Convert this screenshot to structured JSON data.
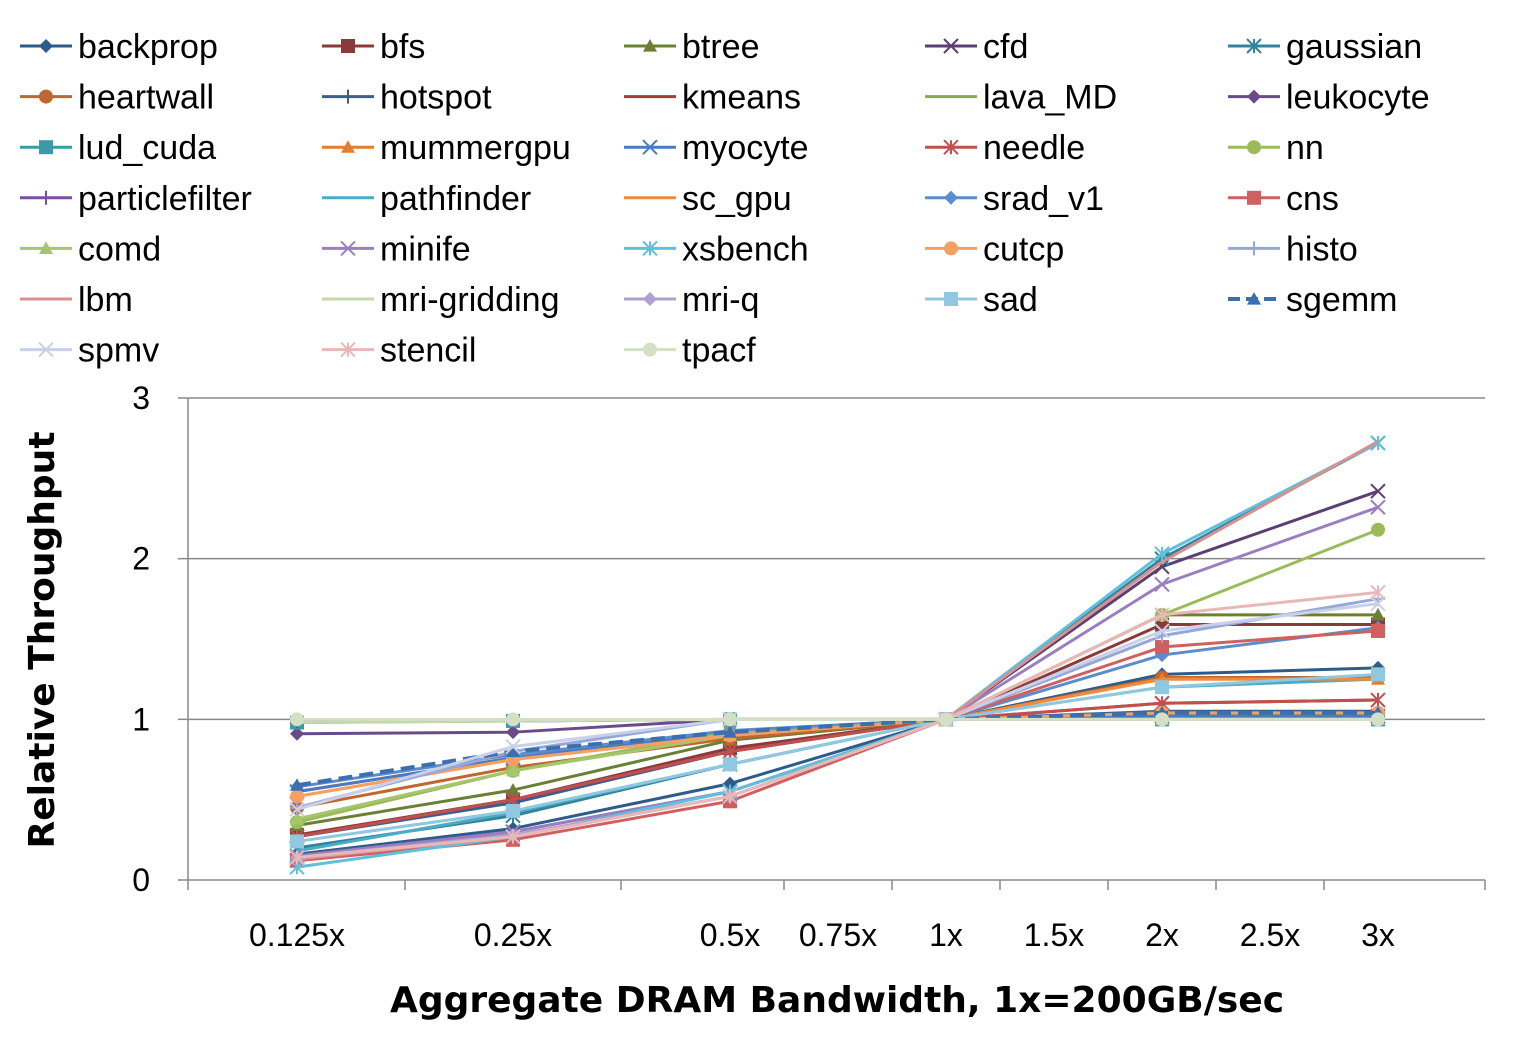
{
  "chart_data": {
    "type": "line",
    "xlabel": "Aggregate DRAM Bandwidth, 1x=200GB/sec",
    "ylabel": "Relative Throughput",
    "ylim": [
      0,
      3
    ],
    "yticks": [
      "0",
      "1",
      "2",
      "3"
    ],
    "x_tick_labels": [
      "0.125x",
      "0.25x",
      "0.5x",
      "0.75x",
      "1x",
      "1.5x",
      "2x",
      "2.5x",
      "3x"
    ],
    "categories": [
      "0.125x",
      "0.25x",
      "0.5x",
      "1x",
      "2x",
      "3x"
    ],
    "grid": true,
    "legend_position": "top",
    "series": [
      {
        "name": "backprop",
        "color": "#2E5C8A",
        "marker": "diamond",
        "values": [
          0.16,
          0.32,
          0.6,
          1.0,
          1.28,
          1.32
        ]
      },
      {
        "name": "bfs",
        "color": "#8B3A3A",
        "marker": "square",
        "values": [
          0.28,
          0.5,
          0.82,
          1.0,
          1.59,
          1.59
        ]
      },
      {
        "name": "btree",
        "color": "#6B7F35",
        "marker": "triangle",
        "values": [
          0.34,
          0.56,
          0.87,
          1.0,
          1.65,
          1.65
        ]
      },
      {
        "name": "cfd",
        "color": "#5B3F73",
        "marker": "x",
        "values": [
          0.14,
          0.3,
          0.55,
          1.0,
          1.95,
          2.42
        ]
      },
      {
        "name": "gaussian",
        "color": "#31849B",
        "marker": "star",
        "values": [
          0.2,
          0.4,
          0.72,
          1.0,
          2.0,
          2.72
        ]
      },
      {
        "name": "heartwall",
        "color": "#C0662E",
        "marker": "circle",
        "values": [
          0.45,
          0.7,
          0.88,
          1.0,
          1.26,
          1.26
        ]
      },
      {
        "name": "hotspot",
        "color": "#3A5F8F",
        "marker": "plus",
        "values": [
          0.27,
          0.48,
          0.8,
          1.0,
          1.05,
          1.05
        ]
      },
      {
        "name": "kmeans",
        "color": "#A33B3B",
        "marker": "none",
        "values": [
          0.27,
          0.5,
          0.8,
          1.0,
          1.1,
          1.12
        ]
      },
      {
        "name": "lava_MD",
        "color": "#8AAA4A",
        "marker": "none",
        "values": [
          0.36,
          0.68,
          0.92,
          1.0,
          1.03,
          1.03
        ]
      },
      {
        "name": "leukocyte",
        "color": "#6B4A8A",
        "marker": "diamond",
        "values": [
          0.91,
          0.92,
          1.0,
          1.0,
          1.0,
          1.0
        ]
      },
      {
        "name": "lud_cuda",
        "color": "#3A9AAA",
        "marker": "square",
        "values": [
          0.98,
          0.99,
          1.0,
          1.0,
          1.0,
          1.0
        ]
      },
      {
        "name": "mummergpu",
        "color": "#E0802E",
        "marker": "triangle",
        "values": [
          0.55,
          0.76,
          0.92,
          1.0,
          1.25,
          1.25
        ]
      },
      {
        "name": "myocyte",
        "color": "#4A7AC0",
        "marker": "x",
        "values": [
          0.55,
          0.76,
          0.92,
          1.0,
          1.02,
          1.02
        ]
      },
      {
        "name": "needle",
        "color": "#C0504D",
        "marker": "star",
        "values": [
          0.27,
          0.5,
          0.8,
          1.0,
          1.1,
          1.12
        ]
      },
      {
        "name": "nn",
        "color": "#9BBB59",
        "marker": "circle",
        "values": [
          0.36,
          0.68,
          0.92,
          1.0,
          1.65,
          2.18
        ]
      },
      {
        "name": "particlefilter",
        "color": "#7B4FA0",
        "marker": "plus",
        "values": [
          0.99,
          0.99,
          1.0,
          1.0,
          1.0,
          1.0
        ]
      },
      {
        "name": "pathfinder",
        "color": "#4BACC6",
        "marker": "none",
        "values": [
          0.18,
          0.42,
          0.72,
          1.0,
          1.2,
          1.25
        ]
      },
      {
        "name": "sc_gpu",
        "color": "#F08A3C",
        "marker": "none",
        "values": [
          0.52,
          0.75,
          0.9,
          1.0,
          1.25,
          1.25
        ]
      },
      {
        "name": "srad_v1",
        "color": "#5B8CCB",
        "marker": "diamond",
        "values": [
          0.58,
          0.78,
          0.93,
          1.0,
          1.4,
          1.57
        ]
      },
      {
        "name": "cns",
        "color": "#D06060",
        "marker": "square",
        "values": [
          0.12,
          0.25,
          0.49,
          1.0,
          1.45,
          1.55
        ]
      },
      {
        "name": "comd",
        "color": "#A5C66A",
        "marker": "triangle",
        "values": [
          0.38,
          0.68,
          0.9,
          1.0,
          1.0,
          1.0
        ]
      },
      {
        "name": "minife",
        "color": "#9A7FC0",
        "marker": "x",
        "values": [
          0.15,
          0.3,
          0.55,
          1.0,
          1.84,
          2.32
        ]
      },
      {
        "name": "xsbench",
        "color": "#5EC0DA",
        "marker": "star",
        "values": [
          0.08,
          0.27,
          0.55,
          1.0,
          2.03,
          2.72
        ]
      },
      {
        "name": "cutcp",
        "color": "#F5A060",
        "marker": "circle",
        "values": [
          0.52,
          0.75,
          0.9,
          1.0,
          1.04,
          1.04
        ]
      },
      {
        "name": "histo",
        "color": "#95A8D8",
        "marker": "plus",
        "values": [
          0.45,
          0.8,
          1.0,
          1.0,
          1.52,
          1.75
        ]
      },
      {
        "name": "lbm",
        "color": "#D89090",
        "marker": "none",
        "values": [
          0.13,
          0.27,
          0.52,
          1.0,
          1.98,
          2.73
        ]
      },
      {
        "name": "mri-gridding",
        "color": "#C4D8A8",
        "marker": "none",
        "values": [
          0.98,
          0.99,
          1.0,
          1.0,
          1.0,
          1.0
        ]
      },
      {
        "name": "mri-q",
        "color": "#B0A0D0",
        "marker": "diamond",
        "values": [
          0.14,
          0.28,
          0.52,
          1.0,
          1.0,
          1.0
        ]
      },
      {
        "name": "sad",
        "color": "#90C8E0",
        "marker": "square",
        "values": [
          0.24,
          0.43,
          0.72,
          1.0,
          1.2,
          1.28
        ]
      },
      {
        "name": "sgemm",
        "color": "#3A6FB0",
        "marker": "triangle",
        "dashed": true,
        "values": [
          0.59,
          0.8,
          0.92,
          1.0,
          1.04,
          1.04
        ]
      },
      {
        "name": "spmv",
        "color": "#C8D0EA",
        "marker": "x",
        "values": [
          0.44,
          0.83,
          1.0,
          1.0,
          1.55,
          1.72
        ]
      },
      {
        "name": "stencil",
        "color": "#E8B8B8",
        "marker": "star",
        "values": [
          0.14,
          0.27,
          0.52,
          1.0,
          1.65,
          1.79
        ]
      },
      {
        "name": "tpacf",
        "color": "#D4E0C4",
        "marker": "circle",
        "values": [
          1.0,
          1.0,
          1.0,
          1.0,
          1.0,
          1.0
        ]
      }
    ]
  }
}
